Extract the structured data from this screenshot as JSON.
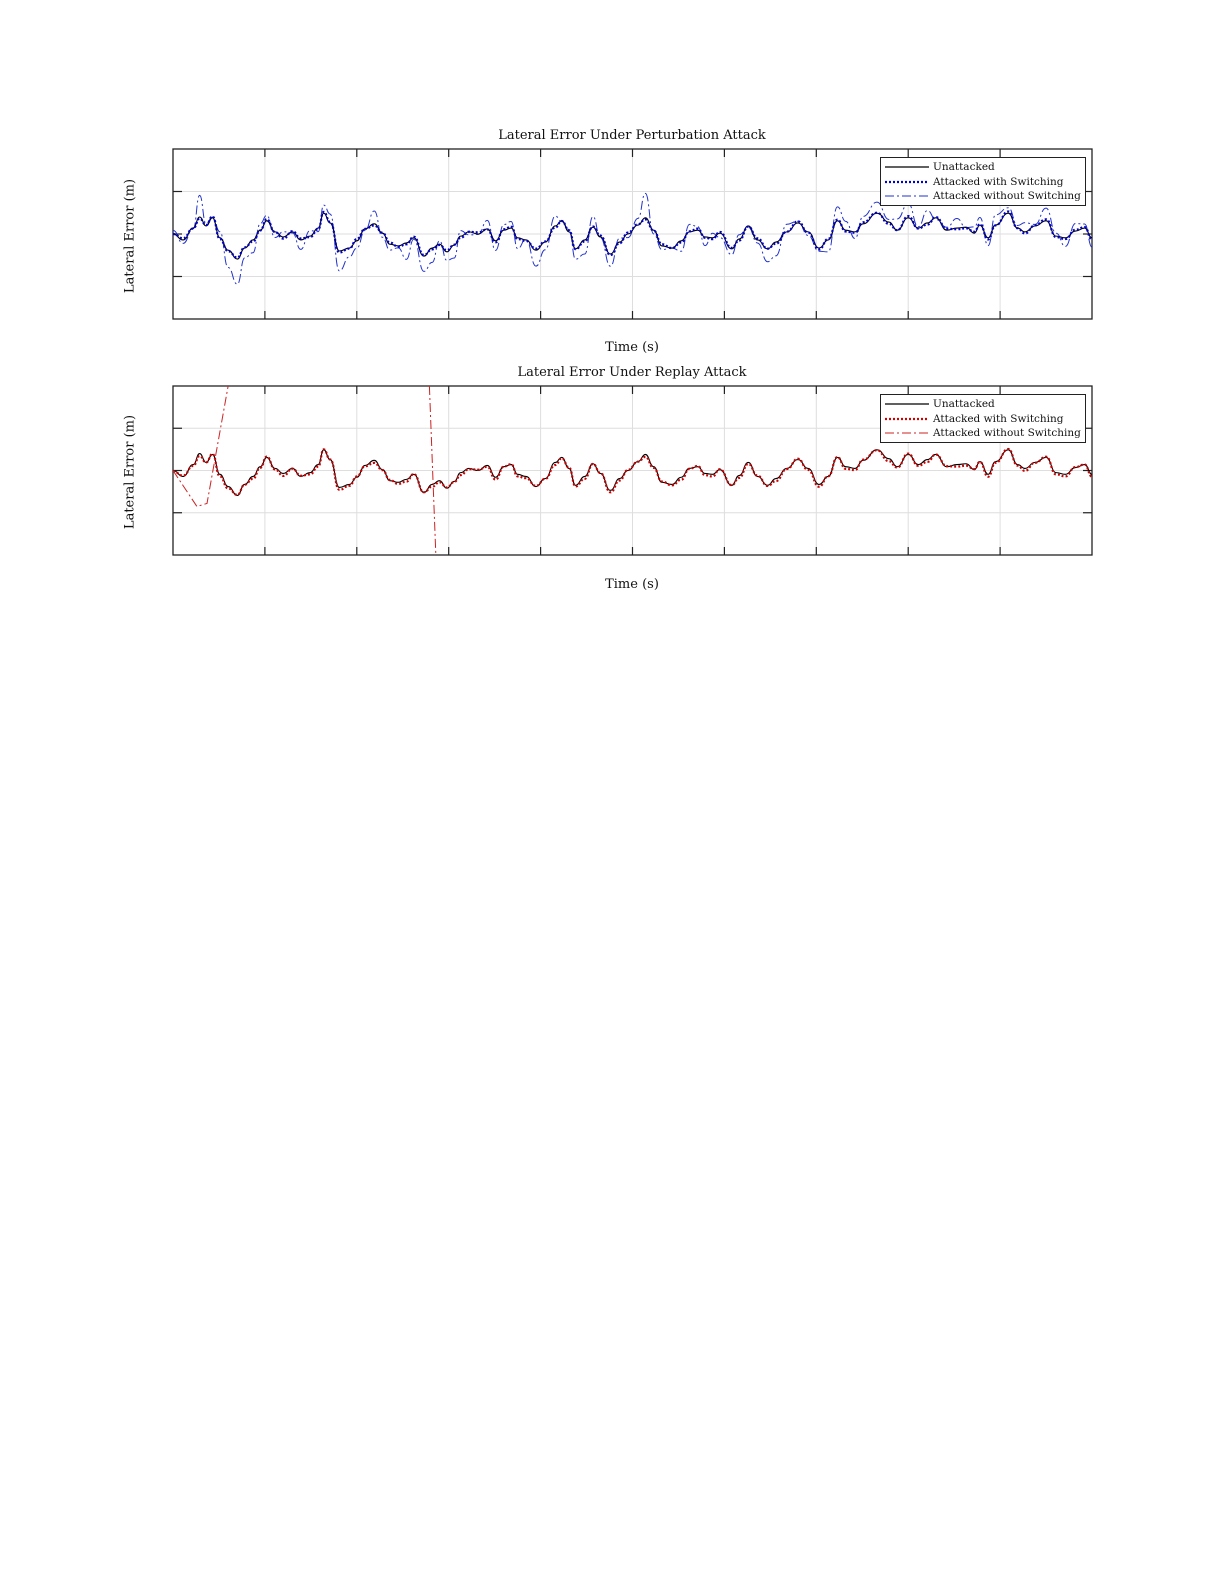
{
  "figure": {
    "panels": [
      {
        "title": "Lateral Error Under Perturbation Attack",
        "xlabel": "Time (s)",
        "ylabel": "Lateral Error (m)",
        "legend": [
          {
            "label": "Unattacked",
            "style": "solid",
            "color": "#000000"
          },
          {
            "label": "Attacked with Switching",
            "style": "dotted",
            "color": "#0000cc"
          },
          {
            "label": "Attacked without Switching",
            "style": "dash-dot",
            "color": "#2233cc"
          }
        ]
      },
      {
        "title": "Lateral Error Under Replay Attack",
        "xlabel": "Time (s)",
        "ylabel": "Lateral Error (m)",
        "legend": [
          {
            "label": "Unattacked",
            "style": "solid",
            "color": "#000000"
          },
          {
            "label": "Attacked with Switching",
            "style": "dotted",
            "color": "#cc0000"
          },
          {
            "label": "Attacked without Switching",
            "style": "dash-dot",
            "color": "#cc2222"
          }
        ]
      }
    ]
  },
  "chart_data": [
    {
      "type": "line",
      "title": "Lateral Error Under Perturbation Attack",
      "xlabel": "Time (s)",
      "ylabel": "Lateral Error (m)",
      "xticks": 11,
      "yticks": 3,
      "tick_labels_visible": false,
      "grid": true,
      "legend_position": "upper right",
      "ylim": [
        -2,
        2
      ],
      "x": [
        0,
        1.1,
        2.2,
        2.9,
        3.6,
        4.3,
        5.1,
        6.0,
        7.0,
        7.8,
        8.7,
        9.5,
        10.2,
        11.1,
        12.0,
        13.0,
        13.9,
        14.9,
        15.8,
        16.4,
        17.1,
        18.1,
        19.2,
        20.0,
        20.9,
        21.9,
        22.8,
        23.6,
        24.5,
        25.4,
        26.2,
        27.3,
        28.2,
        29.0,
        29.8,
        30.6,
        31.3,
        32.2,
        33.2,
        34.2,
        35.1,
        36.0,
        36.8,
        37.5,
        38.4,
        39.5,
        40.5,
        41.6,
        42.3,
        43.1,
        43.8,
        44.8,
        45.7,
        46.5,
        47.6,
        48.6,
        49.5,
        50.6,
        51.4,
        52.3,
        53.2,
        54.3,
        55.3,
        56.2,
        57.1,
        57.9,
        58.7,
        59.5,
        60.8,
        61.6,
        62.6,
        63.6,
        64.7,
        65.6,
        66.8,
        68.0,
        69.1,
        70.3,
        71.3,
        72.3,
        73.2,
        74.2,
        75.1,
        76.6,
        77.9,
        78.8,
        80.0,
        81.1,
        82.1,
        83.0,
        84.2,
        85.3,
        86.3,
        87.2,
        87.8,
        88.7,
        89.5,
        90.9,
        91.9,
        92.7,
        93.8,
        95.0,
        96.1,
        97.1,
        98.2,
        99.2,
        100
      ],
      "series": [
        {
          "name": "Unattacked",
          "values": [
            0,
            -0.14,
            0.14,
            0.4,
            0.19,
            0.38,
            -0.09,
            -0.38,
            -0.59,
            -0.33,
            -0.14,
            0.09,
            0.31,
            0.05,
            -0.07,
            0.05,
            -0.14,
            -0.05,
            0.14,
            0.49,
            0.26,
            -0.4,
            -0.33,
            -0.16,
            0.12,
            0.24,
            0.02,
            -0.24,
            -0.28,
            -0.21,
            -0.09,
            -0.52,
            -0.33,
            -0.24,
            -0.42,
            -0.26,
            -0.05,
            0.05,
            0,
            0.12,
            -0.16,
            0.09,
            0.14,
            -0.09,
            -0.14,
            -0.38,
            -0.19,
            0.19,
            0.31,
            0.05,
            -0.35,
            -0.14,
            0.16,
            -0.07,
            -0.47,
            -0.19,
            0,
            0.21,
            0.38,
            0.09,
            -0.28,
            -0.33,
            -0.16,
            0.05,
            0.09,
            -0.07,
            -0.09,
            0.02,
            -0.35,
            -0.12,
            0.19,
            -0.14,
            -0.35,
            -0.19,
            0.05,
            0.26,
            0.05,
            -0.33,
            -0.14,
            0.31,
            0.09,
            0.05,
            0.24,
            0.49,
            0.28,
            0.09,
            0.38,
            0.14,
            0.26,
            0.38,
            0.09,
            0.14,
            0.16,
            0.02,
            0.21,
            -0.09,
            0.21,
            0.49,
            0.14,
            0.05,
            0.19,
            0.31,
            -0.05,
            -0.09,
            0.07,
            0.14,
            -0.09
          ]
        },
        {
          "name": "Attacked with Switching",
          "values": "tracks Unattacked closely (within ~0.05 m)"
        },
        {
          "name": "Attacked without Switching",
          "values": "oscillates around Unattacked with larger amplitude (peaks ~±0.9 m)"
        }
      ]
    },
    {
      "type": "line",
      "title": "Lateral Error Under Replay Attack",
      "xlabel": "Time (s)",
      "ylabel": "Lateral Error (m)",
      "xticks": 11,
      "yticks": 3,
      "tick_labels_visible": false,
      "grid": true,
      "legend_position": "upper right",
      "ylim": [
        -2,
        2
      ],
      "series": [
        {
          "name": "Unattacked",
          "values": "same trajectory as panel 1 Unattacked"
        },
        {
          "name": "Attacked with Switching",
          "values": "tracks Unattacked closely"
        },
        {
          "name": "Attacked without Switching",
          "segments": [
            {
              "x": [
                0,
                2.6,
                3.7,
                6.0
              ],
              "values": [
                0,
                -0.85,
                -0.78,
                2.0
              ]
            },
            {
              "x": [
                27.9,
                28.6
              ],
              "values": [
                2.0,
                -2.0
              ]
            }
          ]
        }
      ]
    }
  ]
}
